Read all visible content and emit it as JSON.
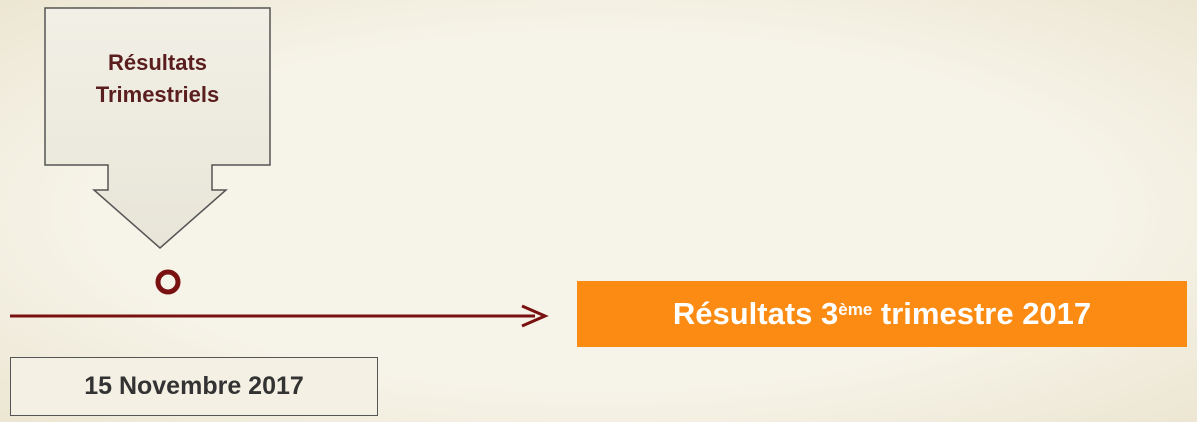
{
  "callout": {
    "lines": [
      "Résultats",
      "Trimestriels"
    ]
  },
  "event": {
    "main": "Résultats 3",
    "superscript": "ème",
    "rest": "trimestre 2017"
  },
  "date": "15 Novembre 2017"
}
